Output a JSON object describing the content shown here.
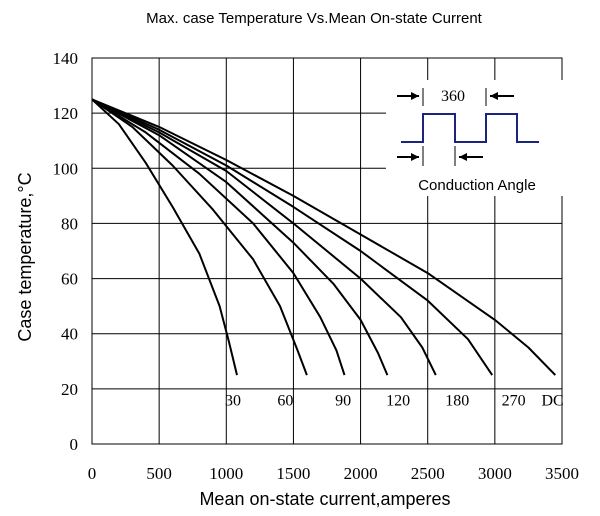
{
  "chart_data": {
    "type": "line",
    "title": "Max. case Temperature Vs.Mean On-state Current",
    "xlabel": "Mean on-state current,amperes",
    "ylabel": "Case temperature,°C",
    "xlim": [
      0,
      3500
    ],
    "ylim": [
      0,
      140
    ],
    "xticks": [
      0,
      500,
      1000,
      1500,
      2000,
      2500,
      3000,
      3500
    ],
    "yticks": [
      0,
      20,
      40,
      60,
      80,
      100,
      120,
      140
    ],
    "grid": true,
    "series": [
      {
        "name": "30",
        "points": [
          [
            0,
            125
          ],
          [
            200,
            116
          ],
          [
            400,
            102
          ],
          [
            600,
            86
          ],
          [
            800,
            69
          ],
          [
            950,
            50
          ],
          [
            1020,
            37
          ],
          [
            1080,
            25
          ]
        ]
      },
      {
        "name": "60",
        "points": [
          [
            0,
            125
          ],
          [
            300,
            115
          ],
          [
            600,
            101
          ],
          [
            900,
            85
          ],
          [
            1200,
            67
          ],
          [
            1400,
            50
          ],
          [
            1530,
            34
          ],
          [
            1600,
            25
          ]
        ]
      },
      {
        "name": "90",
        "points": [
          [
            0,
            125
          ],
          [
            400,
            113
          ],
          [
            800,
            98
          ],
          [
            1200,
            80
          ],
          [
            1500,
            62
          ],
          [
            1700,
            46
          ],
          [
            1820,
            34
          ],
          [
            1880,
            25
          ]
        ]
      },
      {
        "name": "120",
        "points": [
          [
            0,
            125
          ],
          [
            500,
            112
          ],
          [
            1000,
            95
          ],
          [
            1500,
            73
          ],
          [
            1800,
            58
          ],
          [
            2000,
            45
          ],
          [
            2130,
            33
          ],
          [
            2200,
            25
          ]
        ]
      },
      {
        "name": "180",
        "points": [
          [
            0,
            125
          ],
          [
            500,
            113
          ],
          [
            1000,
            99
          ],
          [
            1500,
            80
          ],
          [
            2000,
            60
          ],
          [
            2300,
            46
          ],
          [
            2460,
            35
          ],
          [
            2560,
            25
          ]
        ]
      },
      {
        "name": "270",
        "points": [
          [
            0,
            125
          ],
          [
            500,
            114
          ],
          [
            1000,
            101
          ],
          [
            1500,
            86
          ],
          [
            2000,
            70
          ],
          [
            2500,
            52
          ],
          [
            2800,
            38
          ],
          [
            2980,
            25
          ]
        ]
      },
      {
        "name": "DC",
        "points": [
          [
            0,
            125
          ],
          [
            500,
            115
          ],
          [
            1000,
            103
          ],
          [
            1500,
            90
          ],
          [
            2000,
            76
          ],
          [
            2500,
            62
          ],
          [
            3000,
            45
          ],
          [
            3250,
            35
          ],
          [
            3450,
            25
          ]
        ]
      }
    ],
    "series_labels": [
      {
        "text": "30",
        "x": 1050,
        "y": 14
      },
      {
        "text": "60",
        "x": 1440,
        "y": 14
      },
      {
        "text": "90",
        "x": 1870,
        "y": 14
      },
      {
        "text": "120",
        "x": 2280,
        "y": 14
      },
      {
        "text": "180",
        "x": 2720,
        "y": 14
      },
      {
        "text": "270",
        "x": 3140,
        "y": 14
      },
      {
        "text": "DC",
        "x": 3430,
        "y": 14
      }
    ]
  },
  "inset": {
    "angle_label": "360",
    "caption": "Conduction Angle",
    "waveform_color": "#1a237e"
  }
}
